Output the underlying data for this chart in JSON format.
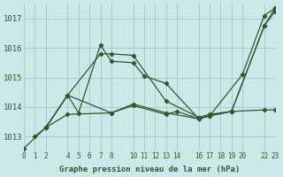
{
  "xlabel": "Graphe pression niveau de la mer (hPa)",
  "background_color": "#cce8e8",
  "grid_color": "#aacccc",
  "line_color": "#2d5a2d",
  "yticks": [
    1013,
    1014,
    1015,
    1016,
    1017
  ],
  "ylim": [
    1012.5,
    1017.5
  ],
  "xlim": [
    0,
    23
  ],
  "xtick_positions": [
    0,
    1,
    2,
    4,
    5,
    6,
    7,
    8,
    10,
    11,
    12,
    13,
    14,
    16,
    17,
    18,
    19,
    20,
    22,
    23
  ],
  "xtick_labels": [
    "0",
    "1",
    "2",
    "4",
    "5",
    "6",
    "7",
    "8",
    "10",
    "11",
    "12",
    "13",
    "14",
    "16",
    "17",
    "18",
    "19",
    "20",
    "22",
    "23"
  ],
  "series": [
    {
      "x": [
        0,
        2,
        4,
        7,
        8,
        10,
        13,
        16,
        17,
        19,
        22,
        23
      ],
      "y": [
        1012.6,
        1013.3,
        1014.4,
        1015.8,
        1015.8,
        1015.75,
        1014.2,
        1013.65,
        1013.75,
        1013.85,
        1016.75,
        1017.25
      ]
    },
    {
      "x": [
        1,
        2,
        4,
        5,
        7,
        8,
        10,
        11,
        13,
        16,
        17,
        20,
        22,
        23
      ],
      "y": [
        1013.0,
        1013.3,
        1014.4,
        1013.8,
        1016.1,
        1015.55,
        1015.5,
        1015.05,
        1014.8,
        1013.6,
        1013.7,
        1015.1,
        1017.1,
        1017.35
      ]
    },
    {
      "x": [
        2,
        4,
        8,
        10,
        13,
        16,
        17,
        19,
        22,
        23
      ],
      "y": [
        1013.3,
        1014.4,
        1013.8,
        1014.1,
        1013.8,
        1013.6,
        1013.7,
        1013.85,
        1016.75,
        1017.35
      ]
    },
    {
      "x": [
        2,
        4,
        8,
        10,
        13,
        14,
        16,
        17,
        19,
        22,
        23
      ],
      "y": [
        1013.3,
        1013.75,
        1013.8,
        1014.05,
        1013.75,
        1013.85,
        1013.6,
        1013.7,
        1013.85,
        1013.9,
        1013.9
      ]
    }
  ]
}
